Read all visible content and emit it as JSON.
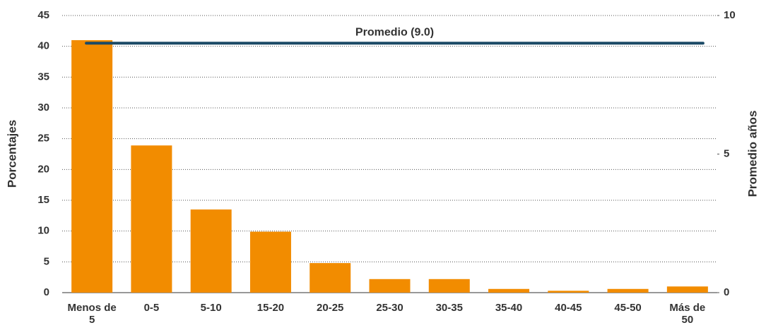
{
  "chart_data": {
    "type": "bar",
    "y_axis_label": "Porcentajes",
    "y2_axis_label": "Promedio años",
    "categories": [
      "Menos de 5",
      "0-5",
      "5-10",
      "15-20",
      "20-25",
      "25-30",
      "30-35",
      "35-40",
      "40-45",
      "45-50",
      "Más de 50"
    ],
    "values": [
      41,
      23.9,
      13.5,
      9.9,
      4.8,
      2.2,
      2.2,
      0.6,
      0.3,
      0.6,
      1.0
    ],
    "color": "#f28c00",
    "average": {
      "label": "Promedio (9.0)",
      "value": 9.0,
      "axis": "y2",
      "color": "#1b4a66"
    },
    "ylim": [
      0,
      45
    ],
    "yticks": [
      0,
      5,
      10,
      15,
      20,
      25,
      30,
      35,
      40,
      45
    ],
    "y2lim": [
      0,
      10
    ],
    "y2ticks": [
      0,
      5,
      10
    ],
    "grid": true
  }
}
